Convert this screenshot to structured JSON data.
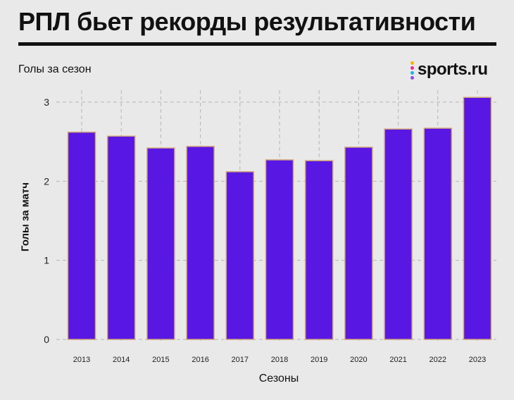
{
  "header": {
    "title": "РПЛ бьет рекорды результативности",
    "subtitle": "Голы за сезон",
    "brand": "sports.ru"
  },
  "colors": {
    "bar_fill": "#5817e3",
    "bar_stroke": "#d2a679",
    "background": "#e9e9e9",
    "logo_dots": [
      "#f2b705",
      "#e5309a",
      "#22b0e6",
      "#8c4de8"
    ]
  },
  "chart_data": {
    "type": "bar",
    "title": "РПЛ бьет рекорды результативности",
    "subtitle": "Голы за сезон",
    "xlabel": "Сезоны",
    "ylabel": "Голы за матч",
    "categories": [
      "2013",
      "2014",
      "2015",
      "2016",
      "2017",
      "2018",
      "2019",
      "2020",
      "2021",
      "2022",
      "2023"
    ],
    "values": [
      2.62,
      2.57,
      2.42,
      2.44,
      2.12,
      2.27,
      2.26,
      2.43,
      2.66,
      2.67,
      3.06
    ],
    "ylim": [
      0,
      3.2
    ],
    "yticks": [
      0,
      1,
      2,
      3
    ],
    "grid": true
  }
}
